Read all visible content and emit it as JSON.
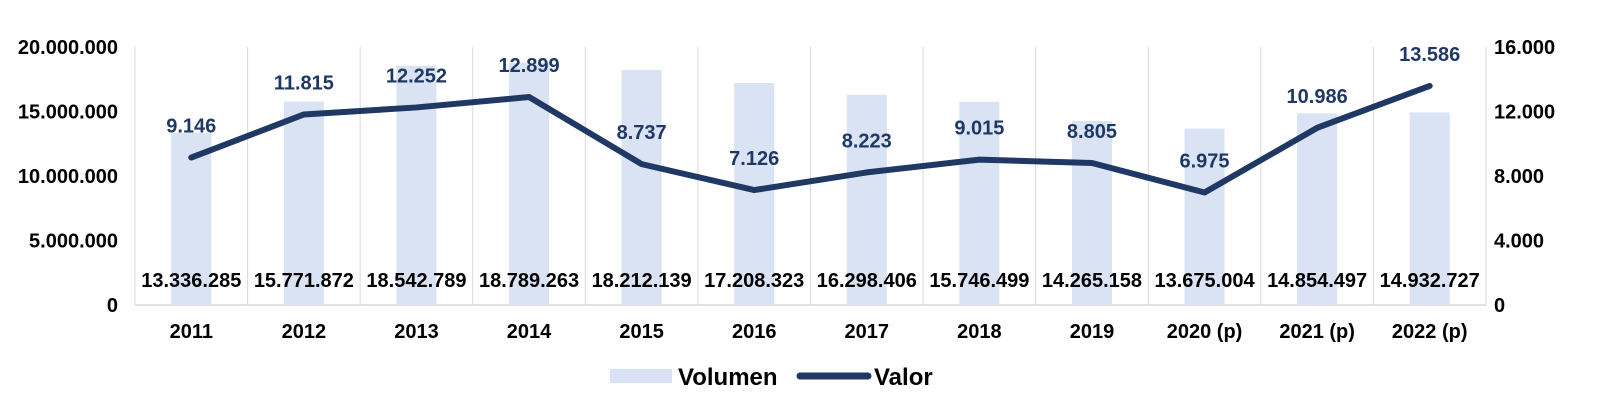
{
  "chart_data": {
    "type": "bar+line",
    "categories": [
      "2011",
      "2012",
      "2013",
      "2014",
      "2015",
      "2016",
      "2017",
      "2018",
      "2019",
      "2020 (p)",
      "2021 (p)",
      "2022 (p)"
    ],
    "series": [
      {
        "name": "Volumen",
        "type": "bar",
        "axis": "left",
        "values": [
          13336285,
          15771872,
          18542789,
          18789263,
          18212139,
          17208323,
          16298406,
          15746499,
          14265158,
          13675004,
          14854497,
          14932727
        ],
        "labels": [
          "13.336.285",
          "15.771.872",
          "18.542.789",
          "18.789.263",
          "18.212.139",
          "17.208.323",
          "16.298.406",
          "15.746.499",
          "14.265.158",
          "13.675.004",
          "14.854.497",
          "14.932.727"
        ],
        "color": "#dae3f3"
      },
      {
        "name": "Valor",
        "type": "line",
        "axis": "right",
        "values": [
          9146,
          11815,
          12252,
          12899,
          8737,
          7126,
          8223,
          9015,
          8805,
          6975,
          10986,
          13586
        ],
        "labels": [
          "9.146",
          "11.815",
          "12.252",
          "12.899",
          "8.737",
          "7.126",
          "8.223",
          "9.015",
          "8.805",
          "6.975",
          "10.986",
          "13.586"
        ],
        "color": "#1f3864"
      }
    ],
    "y_left": {
      "min": 0,
      "max": 20000000,
      "ticks": [
        "0",
        "5.000.000",
        "10.000.000",
        "15.000.000",
        "20.000.000"
      ]
    },
    "y_right": {
      "min": 0,
      "max": 16000,
      "ticks": [
        "0",
        "4.000",
        "8.000",
        "12.000",
        "16.000"
      ]
    },
    "title": "",
    "xlabel": "",
    "ylabel": "",
    "grid": "vertical category separators",
    "legend": {
      "position": "bottom-center",
      "entries": [
        "Volumen",
        "Valor"
      ]
    }
  }
}
